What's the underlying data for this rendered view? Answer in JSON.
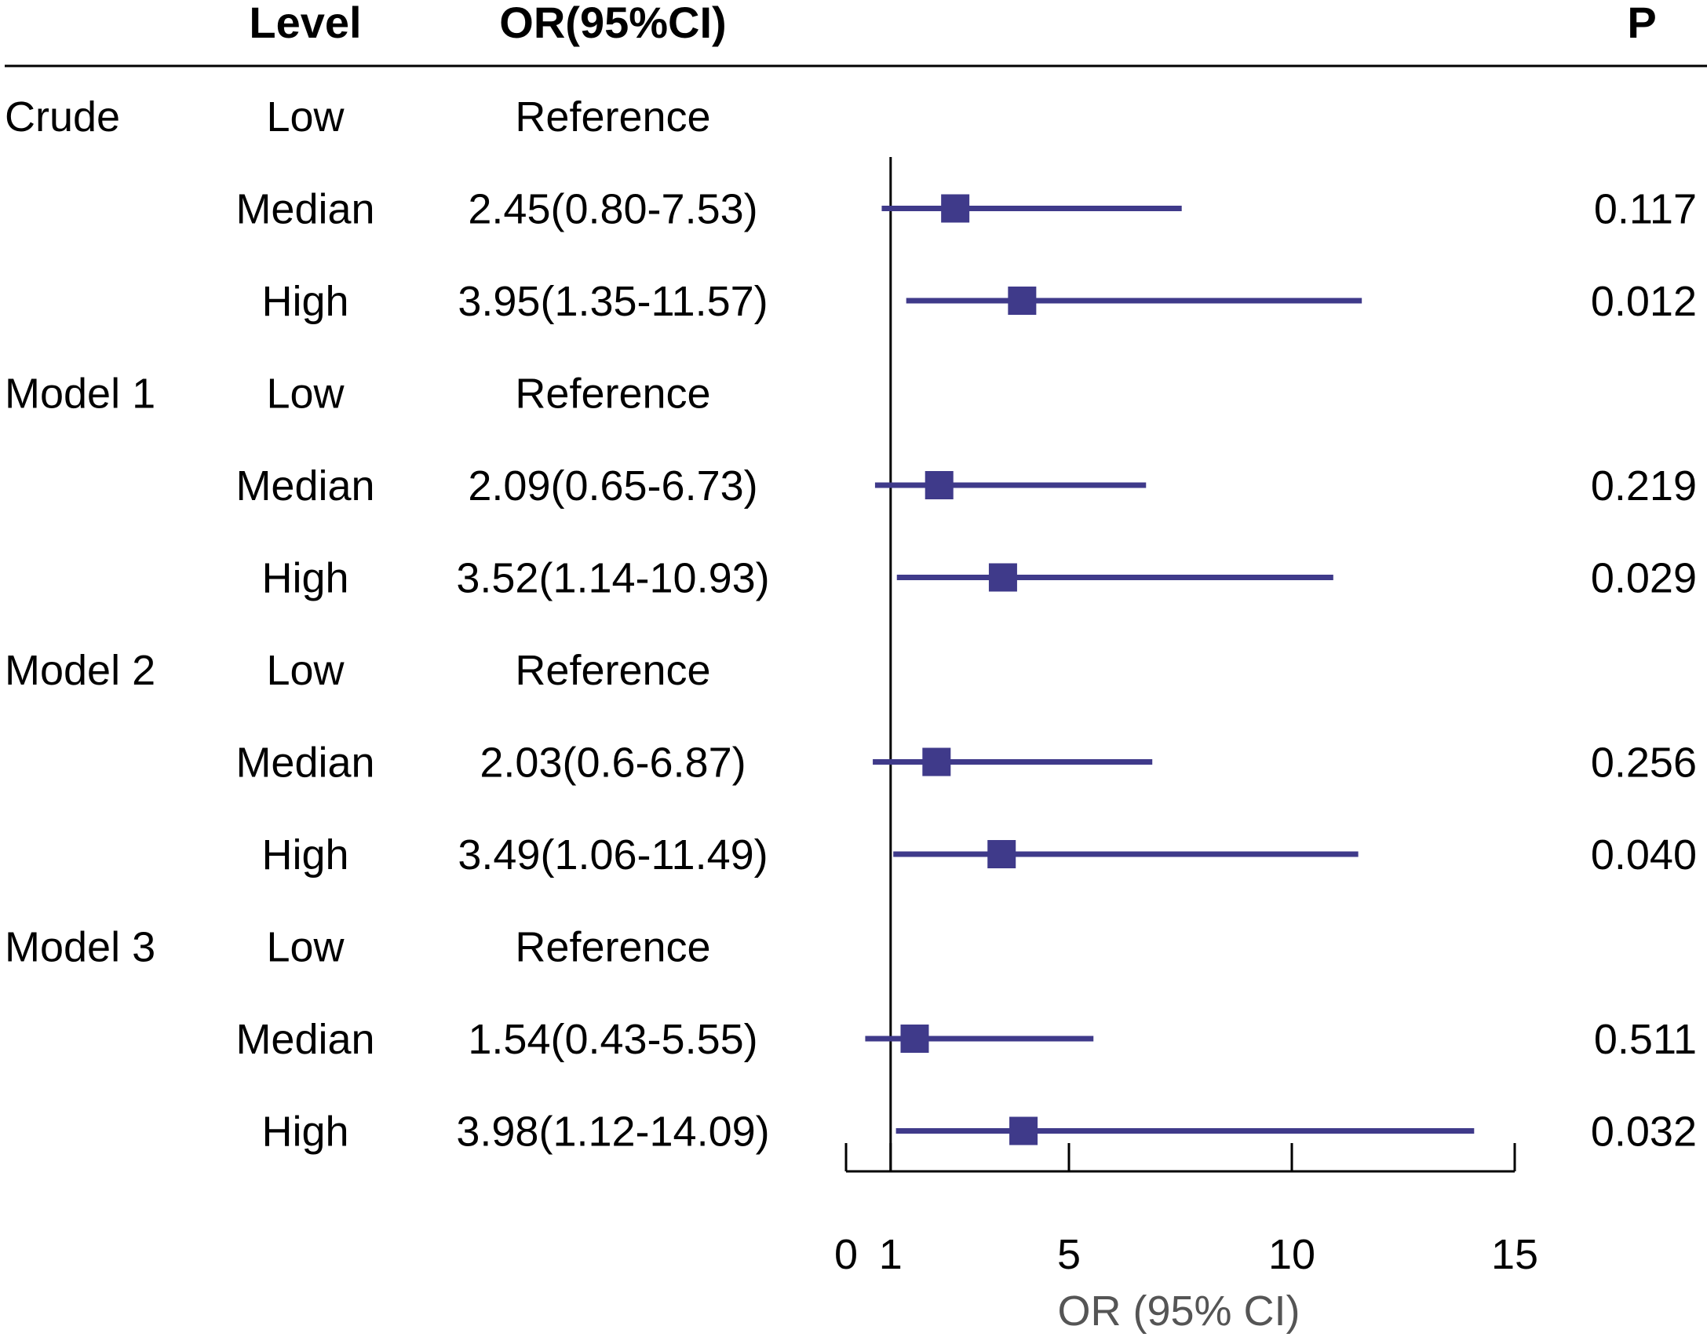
{
  "chart_data": {
    "type": "forest",
    "headers": {
      "group": "",
      "level": "Level",
      "or_ci": "OR(95%CI)",
      "p": "P"
    },
    "rows": [
      {
        "group": "Crude",
        "level": "Low",
        "or_ci": "Reference",
        "or": null,
        "lower": null,
        "upper": null,
        "p": ""
      },
      {
        "group": "",
        "level": "Median",
        "or_ci": "2.45(0.80-7.53)",
        "or": 2.45,
        "lower": 0.8,
        "upper": 7.53,
        "p": "0.117"
      },
      {
        "group": "",
        "level": "High",
        "or_ci": "3.95(1.35-11.57)",
        "or": 3.95,
        "lower": 1.35,
        "upper": 11.57,
        "p": "0.012"
      },
      {
        "group": "Model 1",
        "level": "Low",
        "or_ci": "Reference",
        "or": null,
        "lower": null,
        "upper": null,
        "p": ""
      },
      {
        "group": "",
        "level": "Median",
        "or_ci": "2.09(0.65-6.73)",
        "or": 2.09,
        "lower": 0.65,
        "upper": 6.73,
        "p": "0.219"
      },
      {
        "group": "",
        "level": "High",
        "or_ci": "3.52(1.14-10.93)",
        "or": 3.52,
        "lower": 1.14,
        "upper": 10.93,
        "p": "0.029"
      },
      {
        "group": "Model 2",
        "level": "Low",
        "or_ci": "Reference",
        "or": null,
        "lower": null,
        "upper": null,
        "p": ""
      },
      {
        "group": "",
        "level": "Median",
        "or_ci": "2.03(0.6-6.87)",
        "or": 2.03,
        "lower": 0.6,
        "upper": 6.87,
        "p": "0.256"
      },
      {
        "group": "",
        "level": "High",
        "or_ci": "3.49(1.06-11.49)",
        "or": 3.49,
        "lower": 1.06,
        "upper": 11.49,
        "p": "0.040"
      },
      {
        "group": "Model 3",
        "level": "Low",
        "or_ci": "Reference",
        "or": null,
        "lower": null,
        "upper": null,
        "p": ""
      },
      {
        "group": "",
        "level": "Median",
        "or_ci": "1.54(0.43-5.55)",
        "or": 1.54,
        "lower": 0.43,
        "upper": 5.55,
        "p": "0.511"
      },
      {
        "group": "",
        "level": "High",
        "or_ci": "3.98(1.12-14.09)",
        "or": 3.98,
        "lower": 1.12,
        "upper": 14.09,
        "p": "0.032"
      }
    ],
    "xlabel": "OR (95% CI)",
    "xlim": [
      0,
      15
    ],
    "xticks": [
      0,
      1,
      5,
      10,
      15
    ],
    "xtick_labels": [
      "0",
      "1",
      "5",
      "10",
      "15"
    ],
    "reference_line": 1,
    "colors": {
      "marker": "#3f3a8a",
      "axis": "#000000",
      "xlabel": "#555555"
    }
  }
}
